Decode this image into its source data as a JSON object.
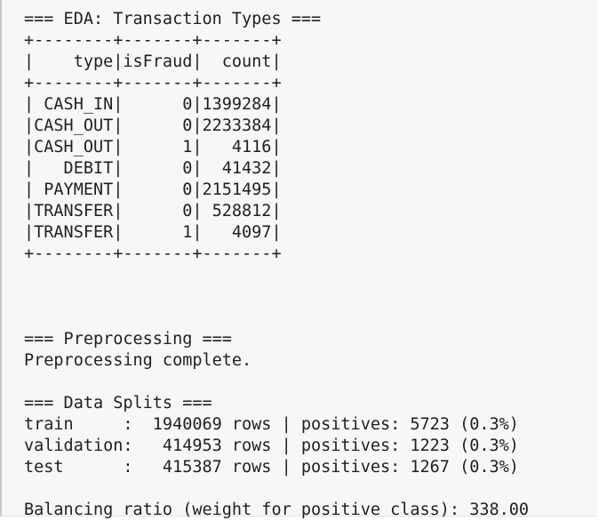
{
  "output": {
    "eda_header": "=== EDA: Transaction Types ===",
    "table_border_top": "+--------+-------+-------+",
    "table_header": "|    type|isFraud|  count|",
    "table_border_mid": "+--------+-------+-------+",
    "table_rows": [
      "| CASH_IN|      0|1399284|",
      "|CASH_OUT|      0|2233384|",
      "|CASH_OUT|      1|   4116|",
      "|   DEBIT|      0|  41432|",
      "| PAYMENT|      0|2151495|",
      "|TRANSFER|      0| 528812|",
      "|TRANSFER|      1|   4097|"
    ],
    "table_border_bottom": "+--------+-------+-------+",
    "preprocessing_header": "=== Preprocessing ===",
    "preprocessing_status": "Preprocessing complete.",
    "splits_header": "=== Data Splits ===",
    "splits": [
      "train     :  1940069 rows | positives: 5723 (0.3%)",
      "validation:   414953 rows | positives: 1223 (0.3%)",
      "test      :   415387 rows | positives: 1267 (0.3%)"
    ],
    "balancing": "Balancing ratio (weight for positive class): 338.00"
  }
}
